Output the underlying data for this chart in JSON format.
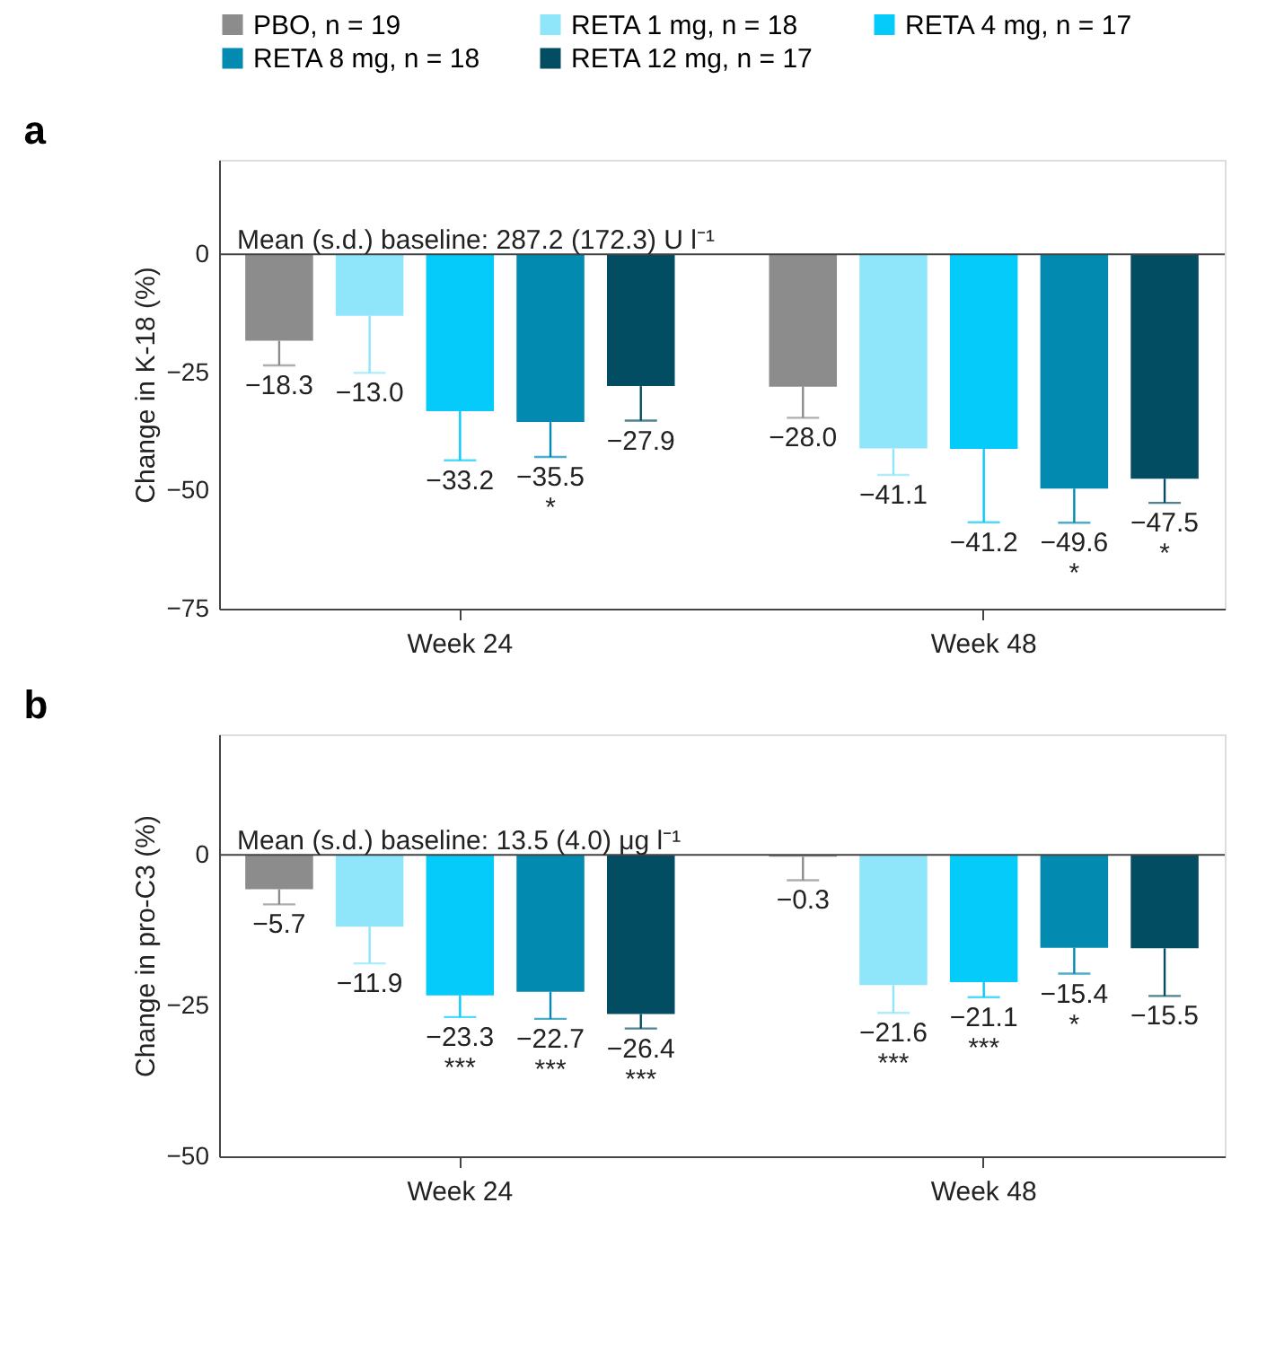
{
  "chart_data": [
    {
      "type": "bar",
      "title": "a",
      "ylabel": "Change in K-18 (%)",
      "categories": [
        "Week 24",
        "Week 48"
      ],
      "ylim": [
        -75,
        20
      ],
      "yticks": [
        0,
        -25,
        -50,
        -75
      ],
      "legend": "top",
      "grid": false,
      "annotations": [
        "Mean (s.d.) baseline: 287.2 (172.3) U l⁻¹"
      ],
      "ref_lines": [
        {
          "axis": "y",
          "value": 0
        }
      ],
      "series": [
        {
          "name": "PBO, n = 19",
          "color": "#8c8c8c",
          "values": [
            -18.3,
            -28.0
          ],
          "errors": [
            [
              -23.5,
              -18.3
            ],
            [
              -34.6,
              -28.0
            ]
          ],
          "value_labels": [
            "−18.3",
            "−28.0"
          ]
        },
        {
          "name": "RETA 1 mg, n = 18",
          "color": "#8fe6fb",
          "values": [
            -13.0,
            -41.1
          ],
          "errors": [
            [
              -25.1,
              -13.0
            ],
            [
              -46.7,
              -41.1
            ]
          ],
          "value_labels": [
            "−13.0",
            "−41.1"
          ]
        },
        {
          "name": "RETA 4 mg, n = 17",
          "color": "#05cbfb",
          "values": [
            -33.2,
            -41.2
          ],
          "errors": [
            [
              -43.6,
              -33.2
            ],
            [
              -56.7,
              -41.2
            ]
          ],
          "value_labels": [
            "−33.2",
            "−41.2"
          ]
        },
        {
          "name": "RETA 8 mg, n = 18",
          "color": "#038ab0",
          "values": [
            -35.5,
            -49.6
          ],
          "errors": [
            [
              -42.9,
              -35.5
            ],
            [
              -56.8,
              -49.6
            ]
          ],
          "value_labels": [
            "−35.5\n*",
            "−49.6\n*"
          ]
        },
        {
          "name": "RETA 12 mg, n = 17",
          "color": "#034d63",
          "values": [
            -27.9,
            -47.5
          ],
          "errors": [
            [
              -35.2,
              -27.9
            ],
            [
              -52.6,
              -47.5
            ]
          ],
          "value_labels": [
            "−27.9",
            "−47.5\n*"
          ]
        }
      ]
    },
    {
      "type": "bar",
      "title": "b",
      "ylabel": "Change in pro-C3 (%)",
      "categories": [
        "Week 24",
        "Week 48"
      ],
      "ylim": [
        -50,
        20
      ],
      "yticks": [
        0,
        -25,
        -50
      ],
      "grid": false,
      "annotations": [
        "Mean (s.d.) baseline: 13.5 (4.0) μg l⁻¹"
      ],
      "ref_lines": [
        {
          "axis": "y",
          "value": 0
        }
      ],
      "series": [
        {
          "name": "PBO, n = 19",
          "color": "#8c8c8c",
          "values": [
            -5.7,
            -0.3
          ],
          "errors": [
            [
              -8.2,
              -5.7
            ],
            [
              -4.2,
              -0.3
            ]
          ],
          "value_labels": [
            "−5.7",
            "−0.3"
          ]
        },
        {
          "name": "RETA 1 mg, n = 18",
          "color": "#8fe6fb",
          "values": [
            -11.9,
            -21.6
          ],
          "errors": [
            [
              -18.0,
              -11.9
            ],
            [
              -26.2,
              -21.6
            ]
          ],
          "value_labels": [
            "−11.9",
            "−21.6\n***"
          ]
        },
        {
          "name": "RETA 4 mg, n = 17",
          "color": "#05cbfb",
          "values": [
            -23.3,
            -21.1
          ],
          "errors": [
            [
              -26.9,
              -23.3
            ],
            [
              -23.6,
              -21.1
            ]
          ],
          "value_labels": [
            "−23.3\n***",
            "−21.1\n***"
          ]
        },
        {
          "name": "RETA 8 mg, n = 18",
          "color": "#038ab0",
          "values": [
            -22.7,
            -15.4
          ],
          "errors": [
            [
              -27.2,
              -22.7
            ],
            [
              -19.7,
              -15.4
            ]
          ],
          "value_labels": [
            "−22.7\n***",
            "−15.4\n*"
          ]
        },
        {
          "name": "RETA 12 mg, n = 17",
          "color": "#034d63",
          "values": [
            -26.4,
            -15.5
          ],
          "errors": [
            [
              -28.8,
              -26.4
            ],
            [
              -23.4,
              -15.5
            ]
          ],
          "value_labels": [
            "−26.4\n***",
            "−15.5"
          ]
        }
      ]
    }
  ]
}
